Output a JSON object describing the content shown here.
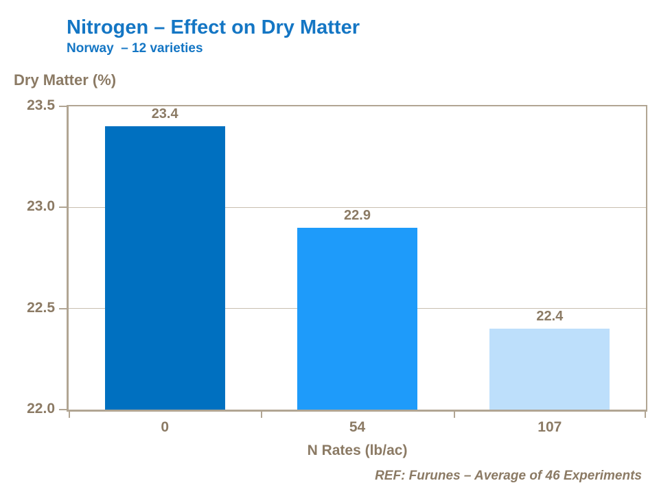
{
  "header": {
    "title": "Nitrogen – Effect on Dry Matter",
    "subtitle": "Norway  – 12 varieties"
  },
  "footer": {
    "ref": "REF: Furunes – Average of 46 Experiments"
  },
  "colors": {
    "background": "#FFFFFF",
    "title_blue": "#1476C4",
    "text_brown": "#8B7A64",
    "axis_tan": "#B1A593",
    "gridline_tan": "#C8BEAF"
  },
  "chart_data": {
    "type": "bar",
    "title": "Nitrogen – Effect on Dry Matter",
    "subtitle": "Norway  – 12 varieties",
    "categories": [
      "0",
      "54",
      "107"
    ],
    "values": [
      23.4,
      22.9,
      22.4
    ],
    "data_labels": [
      "23.4",
      "22.9",
      "22.4"
    ],
    "xlabel": "N Rates (lb/ac)",
    "ylabel": "Dry Matter (%)",
    "ylim": [
      22.0,
      23.5
    ],
    "yticks": [
      22.0,
      22.5,
      23.0,
      23.5
    ],
    "ytick_labels": [
      "22.0",
      "22.5",
      "23.0",
      "23.5"
    ],
    "bar_colors": [
      "#0070C0",
      "#1E9BFA",
      "#BDDFFB"
    ],
    "bar_width_frac": 0.625,
    "grid": "horizontal",
    "legend": "none",
    "source_note": "REF: Furunes – Average of 46 Experiments"
  }
}
